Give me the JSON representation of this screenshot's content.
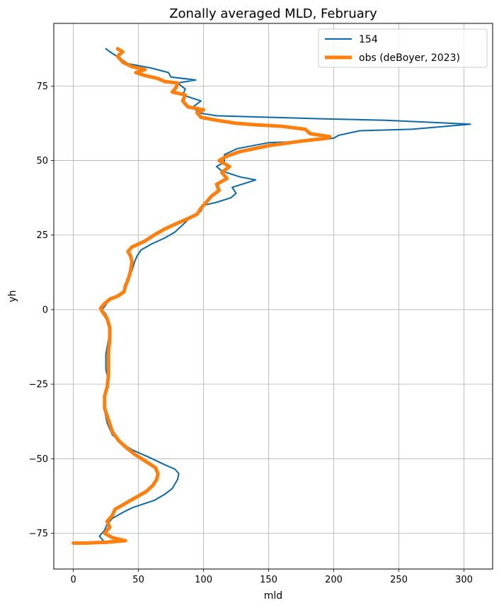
{
  "chart_data": {
    "type": "line",
    "title": "Zonally averaged MLD, February",
    "xlabel": "mld",
    "ylabel": "yh",
    "xlim": [
      -15,
      322
    ],
    "ylim": [
      -87,
      96
    ],
    "xticks": [
      0,
      50,
      100,
      150,
      200,
      250,
      300
    ],
    "yticks": [
      -75,
      -50,
      -25,
      0,
      25,
      50,
      75
    ],
    "xtick_labels": [
      "0",
      "50",
      "100",
      "150",
      "200",
      "250",
      "300"
    ],
    "ytick_labels": [
      "−75",
      "−50",
      "−25",
      "0",
      "25",
      "50",
      "75"
    ],
    "grid": true,
    "legend_position": "top-right",
    "series": [
      {
        "name": "154",
        "color": "#0a6aa8",
        "linewidth": 2,
        "points": [
          [
            25,
            -78.5
          ],
          [
            22,
            -77
          ],
          [
            20,
            -76
          ],
          [
            24,
            -74
          ],
          [
            26,
            -72
          ],
          [
            30,
            -70
          ],
          [
            38,
            -68
          ],
          [
            45,
            -66.5
          ],
          [
            55,
            -65
          ],
          [
            62,
            -64
          ],
          [
            70,
            -62
          ],
          [
            76,
            -60
          ],
          [
            80,
            -57
          ],
          [
            81,
            -55
          ],
          [
            78,
            -53.5
          ],
          [
            70,
            -52
          ],
          [
            58,
            -49.5
          ],
          [
            45,
            -47
          ],
          [
            38,
            -45
          ],
          [
            30,
            -42
          ],
          [
            26,
            -38
          ],
          [
            24,
            -34
          ],
          [
            24,
            -30
          ],
          [
            25,
            -27
          ],
          [
            27,
            -24
          ],
          [
            25,
            -20
          ],
          [
            25,
            -15
          ],
          [
            27,
            -10
          ],
          [
            28,
            -5
          ],
          [
            25,
            -1.5
          ],
          [
            22,
            0
          ],
          [
            24,
            1
          ],
          [
            27,
            3
          ],
          [
            32,
            4.5
          ],
          [
            38,
            5.5
          ],
          [
            40,
            7
          ],
          [
            41,
            10
          ],
          [
            45,
            13
          ],
          [
            47,
            16
          ],
          [
            49,
            18
          ],
          [
            52,
            20
          ],
          [
            60,
            22
          ],
          [
            70,
            24
          ],
          [
            78,
            26
          ],
          [
            83,
            28
          ],
          [
            90,
            31
          ],
          [
            98,
            33
          ],
          [
            100,
            35
          ],
          [
            110,
            36
          ],
          [
            121,
            37.5
          ],
          [
            125,
            39
          ],
          [
            122,
            41
          ],
          [
            140,
            43.5
          ],
          [
            128,
            44.5
          ],
          [
            114,
            46.5
          ],
          [
            110,
            48
          ],
          [
            116,
            49.5
          ],
          [
            116,
            52
          ],
          [
            126,
            54
          ],
          [
            150,
            56
          ],
          [
            180,
            56.5
          ],
          [
            200,
            57.5
          ],
          [
            204,
            58.5
          ],
          [
            220,
            60
          ],
          [
            260,
            60.5
          ],
          [
            305,
            62.2
          ],
          [
            240,
            63.5
          ],
          [
            190,
            64
          ],
          [
            150,
            64.5
          ],
          [
            110,
            65
          ],
          [
            96,
            66
          ],
          [
            92,
            68
          ],
          [
            98,
            70
          ],
          [
            84,
            72
          ],
          [
            86,
            74
          ],
          [
            80,
            76
          ],
          [
            94,
            77
          ],
          [
            75,
            78
          ],
          [
            73,
            79.5
          ],
          [
            60,
            81
          ],
          [
            42,
            82.5
          ],
          [
            35,
            84.5
          ],
          [
            28,
            86.5
          ],
          [
            25,
            87.5
          ]
        ]
      },
      {
        "name": "obs (deBoyer, 2023)",
        "color": "#ff7f0e",
        "linewidth": 5,
        "points": [
          [
            0,
            -78.3
          ],
          [
            10,
            -78.3
          ],
          [
            26,
            -78
          ],
          [
            40,
            -77.5
          ],
          [
            30,
            -76.5
          ],
          [
            24,
            -75
          ],
          [
            28,
            -73
          ],
          [
            26,
            -71
          ],
          [
            30,
            -69
          ],
          [
            32,
            -67
          ],
          [
            38,
            -65.5
          ],
          [
            44,
            -64
          ],
          [
            50,
            -62.5
          ],
          [
            56,
            -61
          ],
          [
            61,
            -59
          ],
          [
            64,
            -57
          ],
          [
            65,
            -55
          ],
          [
            63,
            -53
          ],
          [
            56,
            -51
          ],
          [
            47,
            -48.5
          ],
          [
            40,
            -46
          ],
          [
            35,
            -44
          ],
          [
            30,
            -41
          ],
          [
            27,
            -37
          ],
          [
            24,
            -33
          ],
          [
            24,
            -29
          ],
          [
            26,
            -26
          ],
          [
            27,
            -22
          ],
          [
            27,
            -18
          ],
          [
            27,
            -14
          ],
          [
            28,
            -10
          ],
          [
            28,
            -6
          ],
          [
            26,
            -3
          ],
          [
            22,
            -0.5
          ],
          [
            21,
            0.5
          ],
          [
            24,
            2
          ],
          [
            28,
            3.5
          ],
          [
            34,
            4.5
          ],
          [
            39,
            6
          ],
          [
            40,
            8
          ],
          [
            42,
            10
          ],
          [
            44,
            13
          ],
          [
            45,
            16
          ],
          [
            44,
            18
          ],
          [
            42,
            19.5
          ],
          [
            45,
            21
          ],
          [
            55,
            23
          ],
          [
            62,
            25
          ],
          [
            70,
            27
          ],
          [
            80,
            29
          ],
          [
            88,
            30.5
          ],
          [
            95,
            32
          ],
          [
            98,
            34
          ],
          [
            102,
            36
          ],
          [
            106,
            38
          ],
          [
            112,
            40
          ],
          [
            110,
            42
          ],
          [
            118,
            44
          ],
          [
            114,
            46
          ],
          [
            120,
            48
          ],
          [
            112,
            50
          ],
          [
            118,
            51.5
          ],
          [
            128,
            53
          ],
          [
            150,
            55
          ],
          [
            175,
            56.5
          ],
          [
            195,
            57.5
          ],
          [
            197,
            58
          ],
          [
            182,
            59
          ],
          [
            178,
            60.5
          ],
          [
            160,
            61.5
          ],
          [
            140,
            62
          ],
          [
            125,
            62.5
          ],
          [
            110,
            63.5
          ],
          [
            98,
            64.5
          ],
          [
            95,
            66
          ],
          [
            100,
            67
          ],
          [
            88,
            68
          ],
          [
            84,
            70
          ],
          [
            86,
            72
          ],
          [
            76,
            73
          ],
          [
            79,
            74.5
          ],
          [
            80,
            76
          ],
          [
            70,
            76.5
          ],
          [
            65,
            77.5
          ],
          [
            55,
            78.5
          ],
          [
            48,
            79.5
          ],
          [
            55,
            80.5
          ],
          [
            45,
            81.5
          ],
          [
            38,
            83
          ],
          [
            34,
            85
          ],
          [
            38,
            86.5
          ],
          [
            34,
            87.5
          ]
        ]
      }
    ]
  }
}
